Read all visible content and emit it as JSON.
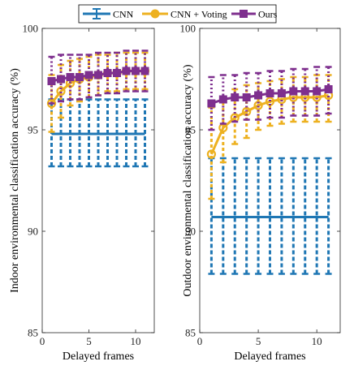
{
  "legend": {
    "items": [
      {
        "label": "CNN",
        "color": "#1f77b4",
        "marker": "errorbar"
      },
      {
        "label": "CNN + Voting",
        "color": "#edb120",
        "marker": "circle"
      },
      {
        "label": "Ours",
        "color": "#7e2f8e",
        "marker": "square"
      }
    ]
  },
  "chart_data": [
    {
      "type": "line",
      "error_bars": true,
      "xlabel": "Delayed frames",
      "ylabel": "Indoor environmental classification accuracy (%)",
      "xlim": [
        0,
        12
      ],
      "ylim": [
        85,
        100
      ],
      "xticks": [
        0,
        5,
        10
      ],
      "yticks": [
        85,
        90,
        95,
        100
      ],
      "x": [
        1,
        2,
        3,
        4,
        5,
        6,
        7,
        8,
        9,
        10,
        11
      ],
      "series": [
        {
          "name": "CNN",
          "color": "#1f77b4",
          "values": [
            94.8,
            94.8,
            94.8,
            94.8,
            94.8,
            94.8,
            94.8,
            94.8,
            94.8,
            94.8,
            94.8
          ],
          "lower": [
            93.2,
            93.2,
            93.2,
            93.2,
            93.2,
            93.2,
            93.2,
            93.2,
            93.2,
            93.2,
            93.2
          ],
          "upper": [
            96.5,
            96.5,
            96.5,
            96.5,
            96.5,
            96.5,
            96.5,
            96.5,
            96.5,
            96.5,
            96.5
          ]
        },
        {
          "name": "CNN + Voting",
          "color": "#edb120",
          "values": [
            96.3,
            96.9,
            97.3,
            97.5,
            97.6,
            97.7,
            97.8,
            97.8,
            97.9,
            97.9,
            97.9
          ],
          "lower": [
            94.9,
            95.6,
            96.2,
            96.4,
            96.6,
            96.7,
            96.9,
            96.9,
            97.0,
            97.0,
            97.0
          ],
          "upper": [
            97.7,
            98.2,
            98.4,
            98.5,
            98.6,
            98.7,
            98.7,
            98.8,
            98.8,
            98.8,
            98.8
          ]
        },
        {
          "name": "Ours",
          "color": "#7e2f8e",
          "values": [
            97.4,
            97.5,
            97.6,
            97.6,
            97.7,
            97.7,
            97.8,
            97.8,
            97.9,
            97.9,
            97.9
          ],
          "lower": [
            96.3,
            96.4,
            96.5,
            96.5,
            96.6,
            96.7,
            96.8,
            96.8,
            96.9,
            96.9,
            96.9
          ],
          "upper": [
            98.6,
            98.7,
            98.7,
            98.7,
            98.7,
            98.8,
            98.8,
            98.8,
            98.9,
            98.9,
            98.9
          ]
        }
      ]
    },
    {
      "type": "line",
      "error_bars": true,
      "xlabel": "Delayed frames",
      "ylabel": "Outdoor environmental classification accuracy (%)",
      "xlim": [
        0,
        12
      ],
      "ylim": [
        85,
        100
      ],
      "xticks": [
        0,
        5,
        10
      ],
      "yticks": [
        85,
        90,
        95,
        100
      ],
      "x": [
        1,
        2,
        3,
        4,
        5,
        6,
        7,
        8,
        9,
        10,
        11
      ],
      "series": [
        {
          "name": "CNN",
          "color": "#1f77b4",
          "values": [
            90.7,
            90.7,
            90.7,
            90.7,
            90.7,
            90.7,
            90.7,
            90.7,
            90.7,
            90.7,
            90.7
          ],
          "lower": [
            87.9,
            87.9,
            87.9,
            87.9,
            87.9,
            87.9,
            87.9,
            87.9,
            87.9,
            87.9,
            87.9
          ],
          "upper": [
            93.6,
            93.6,
            93.6,
            93.6,
            93.6,
            93.6,
            93.6,
            93.6,
            93.6,
            93.6,
            93.6
          ]
        },
        {
          "name": "CNN + Voting",
          "color": "#edb120",
          "values": [
            93.8,
            95.1,
            95.6,
            95.9,
            96.2,
            96.4,
            96.5,
            96.6,
            96.6,
            96.6,
            96.7
          ],
          "lower": [
            91.6,
            93.4,
            94.3,
            94.6,
            95.0,
            95.2,
            95.3,
            95.4,
            95.4,
            95.4,
            95.4
          ],
          "upper": [
            96.1,
            96.6,
            97.0,
            97.2,
            97.3,
            97.4,
            97.5,
            97.6,
            97.6,
            97.7,
            97.7
          ]
        },
        {
          "name": "Ours",
          "color": "#7e2f8e",
          "values": [
            96.3,
            96.5,
            96.6,
            96.6,
            96.7,
            96.8,
            96.8,
            96.9,
            96.9,
            96.9,
            97.0
          ],
          "lower": [
            95.0,
            95.3,
            95.4,
            95.5,
            95.5,
            95.6,
            95.6,
            95.7,
            95.7,
            95.7,
            95.8
          ],
          "upper": [
            97.6,
            97.7,
            97.7,
            97.8,
            97.8,
            97.9,
            97.9,
            98.0,
            98.0,
            98.1,
            98.1
          ]
        }
      ]
    }
  ]
}
